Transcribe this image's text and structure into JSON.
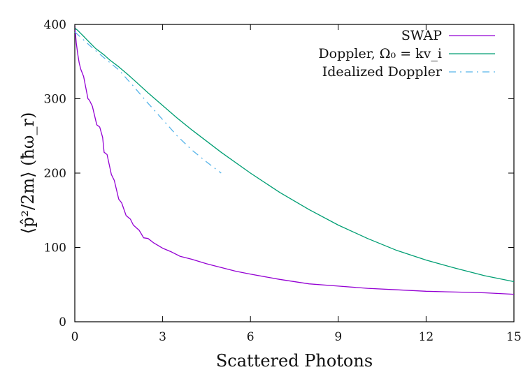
{
  "chart_data": {
    "type": "line",
    "title": "",
    "xlabel": "Scattered Photons",
    "ylabel": "⟨p̂²/2m⟩   (ħω_r)",
    "xlim": [
      0,
      15
    ],
    "ylim": [
      0,
      400
    ],
    "x_ticks": [
      "0",
      "3",
      "6",
      "9",
      "12",
      "15"
    ],
    "y_ticks": [
      "0",
      "100",
      "200",
      "300",
      "400"
    ],
    "grid": false,
    "legend_placement": "top-right",
    "series": [
      {
        "name": "SWAP",
        "color": "#9400d3",
        "style": "solid",
        "x": [
          0,
          0.05,
          0.1,
          0.15,
          0.2,
          0.3,
          0.45,
          0.5,
          0.6,
          0.75,
          0.85,
          0.95,
          1.0,
          1.1,
          1.25,
          1.35,
          1.5,
          1.6,
          1.75,
          1.9,
          2.0,
          2.2,
          2.35,
          2.5,
          2.7,
          3.0,
          3.3,
          3.6,
          4.0,
          4.5,
          5.0,
          5.5,
          6.0,
          7.0,
          8.0,
          9.0,
          10.0,
          11.0,
          12.0,
          13.0,
          14.0,
          15.0
        ],
        "y": [
          398,
          375,
          360,
          348,
          340,
          330,
          300,
          298,
          290,
          265,
          262,
          248,
          228,
          225,
          198,
          190,
          165,
          160,
          143,
          138,
          130,
          123,
          113,
          112,
          106,
          99,
          94,
          88,
          84,
          78,
          73,
          68,
          64,
          57,
          51,
          48,
          45,
          43,
          41,
          40,
          39,
          37
        ]
      },
      {
        "name": "Doppler, Ω₀ = kv_i",
        "color": "#009e73",
        "style": "solid",
        "x": [
          0,
          0.1,
          0.2,
          0.3,
          0.4,
          0.5,
          0.6,
          0.7,
          0.8,
          0.9,
          1.0,
          1.2,
          1.5,
          1.8,
          2.0,
          2.5,
          3.0,
          3.5,
          4.0,
          4.5,
          5.0,
          6.0,
          7.0,
          8.0,
          9.0,
          10.0,
          11.0,
          12.0,
          13.0,
          14.0,
          15.0
        ],
        "y": [
          395,
          392,
          388,
          384,
          380,
          376,
          372,
          368,
          365,
          362,
          359,
          352,
          343,
          333,
          326,
          308,
          291,
          274,
          258,
          243,
          228,
          200,
          174,
          151,
          130,
          112,
          96,
          83,
          72,
          62,
          54
        ]
      },
      {
        "name": "Idealized Doppler",
        "color": "#56b4e9",
        "style": "dashed",
        "x": [
          0,
          0.5,
          1.0,
          1.5,
          2.0,
          2.5,
          3.0,
          3.5,
          4.0,
          4.5,
          5.0
        ],
        "y": [
          390,
          372,
          355,
          339,
          317,
          294,
          272,
          250,
          231,
          215,
          200
        ]
      }
    ]
  }
}
